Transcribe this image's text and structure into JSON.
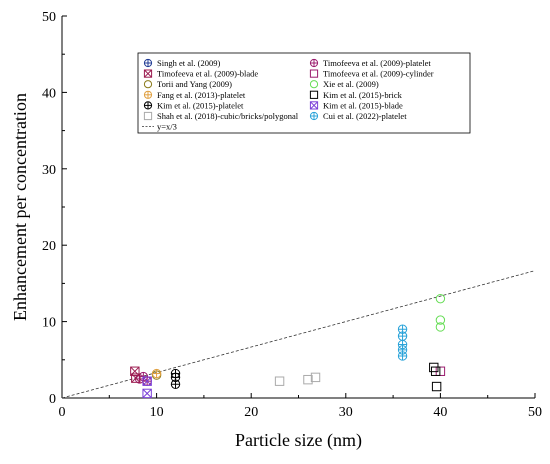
{
  "chart_data": {
    "type": "scatter",
    "xlabel": "Particle size (nm)",
    "ylabel": "Enhancement per concentration",
    "xlim": [
      0,
      50
    ],
    "ylim": [
      0,
      50
    ],
    "xticks": [
      0,
      10,
      20,
      30,
      40,
      50
    ],
    "yticks": [
      0,
      10,
      20,
      30,
      40,
      50
    ],
    "grid": false,
    "legend_position": "top-center",
    "series": [
      {
        "name": "Singh et al. (2009)",
        "marker": "circle-plus",
        "color": "#1f3a93",
        "x": [],
        "y": []
      },
      {
        "name": "Timofeeva et al. (2009)-platelet",
        "marker": "circle-plus",
        "color": "#9b1b6e",
        "x": [
          8.2,
          8.6,
          9.0
        ],
        "y": [
          2.5,
          2.8,
          2.2
        ]
      },
      {
        "name": "Timofeeva et al. (2009)-blade",
        "marker": "square-x",
        "color": "#9b1b4f",
        "x": [
          7.7,
          7.8
        ],
        "y": [
          3.5,
          2.6
        ]
      },
      {
        "name": "Timofeeva et al. (2009)-cylinder",
        "marker": "square",
        "color": "#9b1b6e",
        "x": [
          40.0
        ],
        "y": [
          3.5
        ]
      },
      {
        "name": "Torii and Yang (2009)",
        "marker": "circle",
        "color": "#8a7a1a",
        "x": [
          10.0
        ],
        "y": [
          3.0
        ]
      },
      {
        "name": "Xie et al. (2009)",
        "marker": "circle",
        "color": "#66dd55",
        "x": [
          40.0,
          40.0,
          40.0
        ],
        "y": [
          13.0,
          10.2,
          9.3
        ]
      },
      {
        "name": "Fang et al. (2013)-platelet",
        "marker": "circle-plus",
        "color": "#e0a040",
        "x": [
          10.0
        ],
        "y": [
          3.2
        ]
      },
      {
        "name": "Kim et al. (2015)-brick",
        "marker": "square",
        "color": "#000000",
        "x": [
          39.3,
          39.5,
          39.6
        ],
        "y": [
          4.0,
          3.5,
          1.5
        ]
      },
      {
        "name": "Kim et al. (2015)-platelet",
        "marker": "circle-plus",
        "color": "#000000",
        "x": [
          12.0,
          12.0,
          12.0
        ],
        "y": [
          3.2,
          2.7,
          1.8
        ]
      },
      {
        "name": "Kim et al. (2015)-blade",
        "marker": "square-x",
        "color": "#7a3fd8",
        "x": [
          9.0,
          9.0
        ],
        "y": [
          2.2,
          0.6
        ]
      },
      {
        "name": "Shah et al. (2018)-cubic/bricks/polygonal",
        "marker": "square",
        "color": "#aaaaaa",
        "x": [
          23.0,
          26.0,
          26.8
        ],
        "y": [
          2.2,
          2.4,
          2.7
        ]
      },
      {
        "name": "Cui et al. (2022)-platelet",
        "marker": "circle-plus",
        "color": "#29a3d9",
        "x": [
          36.0,
          36.0,
          36.0,
          36.0,
          36.0
        ],
        "y": [
          9.0,
          8.1,
          7.0,
          6.3,
          5.5
        ]
      }
    ],
    "reference_line": {
      "name": "y=x/3",
      "style": "dashed",
      "color": "#333333",
      "x": [
        0,
        50
      ],
      "y": [
        0,
        16.67
      ]
    }
  }
}
